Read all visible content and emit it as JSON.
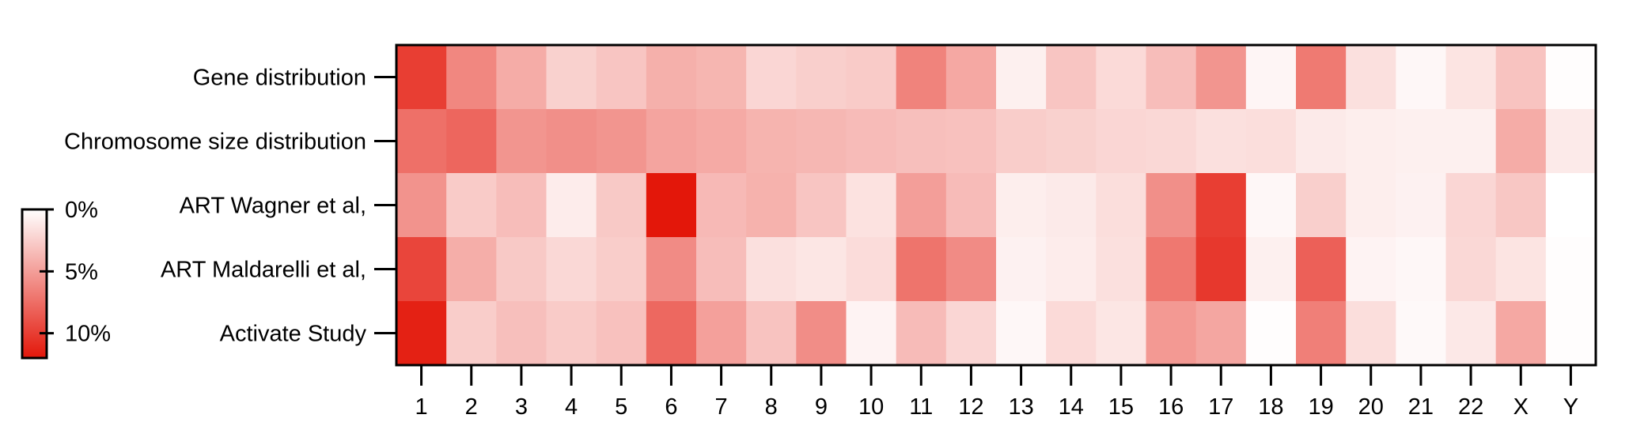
{
  "chart_data": {
    "type": "heatmap",
    "title": "",
    "xlabel": "",
    "ylabel": "",
    "categories": [
      "1",
      "2",
      "3",
      "4",
      "5",
      "6",
      "7",
      "8",
      "9",
      "10",
      "11",
      "12",
      "13",
      "14",
      "15",
      "16",
      "17",
      "18",
      "19",
      "20",
      "21",
      "22",
      "X",
      "Y"
    ],
    "rows": [
      "Gene distribution",
      "Chromosome size distribution",
      "ART Wagner et al,",
      "ART Maldarelli et al,",
      "Activate Study"
    ],
    "values": [
      [
        10.0,
        6.2,
        4.3,
        2.4,
        3.0,
        4.1,
        3.8,
        2.1,
        2.5,
        2.7,
        6.4,
        4.5,
        0.8,
        3.0,
        1.9,
        3.4,
        5.5,
        0.5,
        6.9,
        1.6,
        0.4,
        1.4,
        3.1,
        0.1
      ],
      [
        7.4,
        7.9,
        5.5,
        5.8,
        5.5,
        4.7,
        4.4,
        3.9,
        3.7,
        3.5,
        3.3,
        3.2,
        2.6,
        2.4,
        2.1,
        2.0,
        1.6,
        1.7,
        1.1,
        0.9,
        0.8,
        0.8,
        4.3,
        1.1
      ],
      [
        5.6,
        2.7,
        3.4,
        1.0,
        2.8,
        12.0,
        3.6,
        4.0,
        3.0,
        1.5,
        5.0,
        3.5,
        0.9,
        1.1,
        1.7,
        5.8,
        10.0,
        0.4,
        2.5,
        0.9,
        0.7,
        2.1,
        2.9,
        0.0
      ],
      [
        9.6,
        4.2,
        2.8,
        2.0,
        2.6,
        6.0,
        3.4,
        1.6,
        1.3,
        1.8,
        7.2,
        6.0,
        0.7,
        1.0,
        1.6,
        7.0,
        10.3,
        0.8,
        8.2,
        0.6,
        0.4,
        2.0,
        1.4,
        0.1
      ],
      [
        11.5,
        2.6,
        3.3,
        2.7,
        3.2,
        7.8,
        4.9,
        3.1,
        5.9,
        0.6,
        3.5,
        2.1,
        0.4,
        1.9,
        1.3,
        5.3,
        4.6,
        0.1,
        6.6,
        1.7,
        0.3,
        1.2,
        4.5,
        0.1
      ]
    ],
    "colorbar": {
      "tick_labels": [
        "0%",
        "5%",
        "10%"
      ],
      "tick_values": [
        0,
        5,
        10
      ],
      "range": [
        0,
        12
      ],
      "color_low": "#ffffff",
      "color_high": "#e3170a"
    },
    "grid": false
  }
}
